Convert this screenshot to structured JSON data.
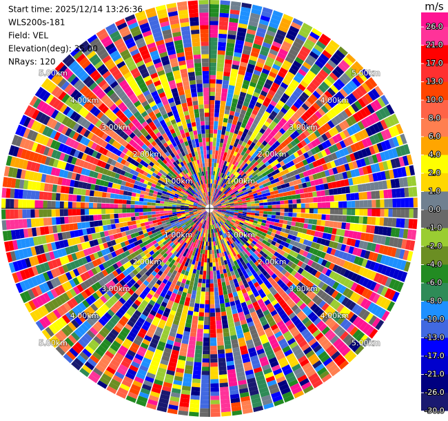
{
  "info": [
    "Start time: 2025/12/14 13:26:36",
    "WLS200s-181",
    "Field: VEL",
    "Elevation(deg): 35.00",
    "NRays: 120"
  ],
  "range_labels": [
    "1.00km",
    "2.00km",
    "3.00km",
    "4.00km",
    "5.00km"
  ],
  "colorbar": {
    "label": "m/s",
    "ticks": [
      {
        "value": 26,
        "label": "26.0"
      },
      {
        "value": 21,
        "label": "21.0"
      },
      {
        "value": 17,
        "label": "17.0"
      },
      {
        "value": 13,
        "label": "13.0"
      },
      {
        "value": 10,
        "label": "10.0"
      },
      {
        "value": 8,
        "label": "8.0"
      },
      {
        "value": 6,
        "label": "6.0"
      },
      {
        "value": 4,
        "label": "4.0"
      },
      {
        "value": 2,
        "label": "2.0"
      },
      {
        "value": 1,
        "label": "1.0"
      },
      {
        "value": 0,
        "label": "0.0"
      },
      {
        "value": -1,
        "label": "-1.0"
      },
      {
        "value": -2,
        "label": "-2.0"
      },
      {
        "value": -4,
        "label": "-4.0"
      },
      {
        "value": -6,
        "label": "-6.0"
      },
      {
        "value": -8,
        "label": "-8.0"
      },
      {
        "value": -10,
        "label": "-10.0"
      },
      {
        "value": -13,
        "label": "-13.0"
      },
      {
        "value": -17,
        "label": "-17.0"
      },
      {
        "value": -21,
        "label": "-21.0"
      },
      {
        "value": -26,
        "label": "-26.0"
      },
      {
        "value": -30,
        "label": "-30.0"
      }
    ],
    "colors": [
      "#ff1493",
      "#ff3399",
      "#ff0000",
      "#ff3030",
      "#ff4500",
      "#ff6347",
      "#ff7f50",
      "#ffa500",
      "#ffff00",
      "#ffd700",
      "#708090",
      "#696969",
      "#9acd32",
      "#6b8e23",
      "#228b22",
      "#2e8b57",
      "#1e90ff",
      "#4169e1",
      "#0000ff",
      "#0000cd",
      "#000080",
      "#191970"
    ]
  }
}
